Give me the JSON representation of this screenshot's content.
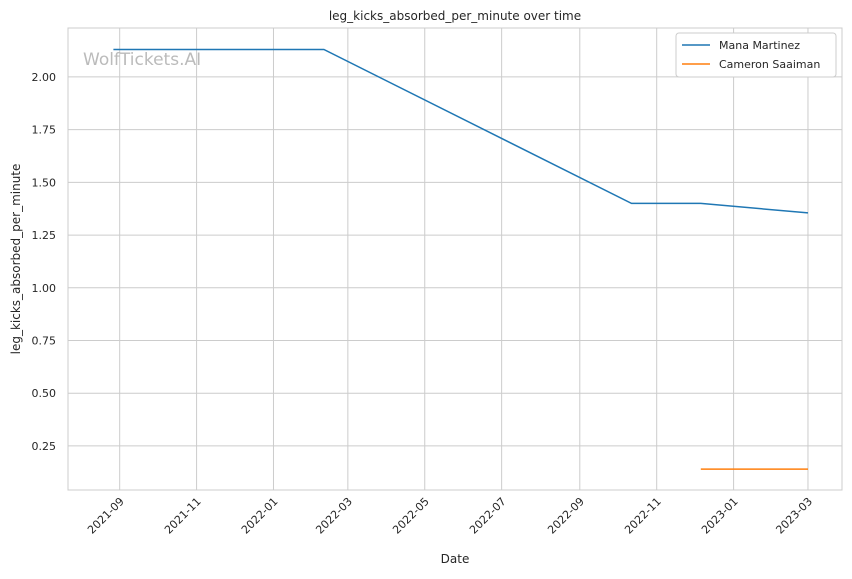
{
  "chart_data": {
    "type": "line",
    "title": "leg_kicks_absorbed_per_minute over time",
    "xlabel": "Date",
    "ylabel": "leg_kicks_absorbed_per_minute",
    "xlim": [
      "2021-07-22",
      "2023-03-28"
    ],
    "ylim": [
      0.041,
      2.232
    ],
    "grid": true,
    "legend_position": "top-right",
    "watermark": "WolfTickets.AI",
    "x_ticks": [
      "2021-09-01",
      "2021-11-01",
      "2022-01-01",
      "2022-03-01",
      "2022-05-01",
      "2022-07-01",
      "2022-09-01",
      "2022-11-01",
      "2023-01-01",
      "2023-03-01"
    ],
    "x_tick_labels": [
      "2021-09",
      "2021-11",
      "2022-01",
      "2022-03",
      "2022-05",
      "2022-07",
      "2022-09",
      "2022-11",
      "2023-01",
      "2023-03"
    ],
    "y_ticks": [
      0.25,
      0.5,
      0.75,
      1.0,
      1.25,
      1.5,
      1.75,
      2.0
    ],
    "y_tick_labels": [
      "0.25",
      "0.50",
      "0.75",
      "1.00",
      "1.25",
      "1.50",
      "1.75",
      "2.00"
    ],
    "series": [
      {
        "name": "Mana Martinez",
        "color": "#1f77b4",
        "x": [
          "2021-08-27",
          "2022-02-10",
          "2022-10-12",
          "2022-12-06",
          "2023-03-01"
        ],
        "y": [
          2.13,
          2.13,
          1.4,
          1.4,
          1.355
        ]
      },
      {
        "name": "Cameron Saaiman",
        "color": "#ff7f0e",
        "x": [
          "2022-12-06",
          "2023-03-01"
        ],
        "y": [
          0.14,
          0.14
        ]
      }
    ]
  }
}
